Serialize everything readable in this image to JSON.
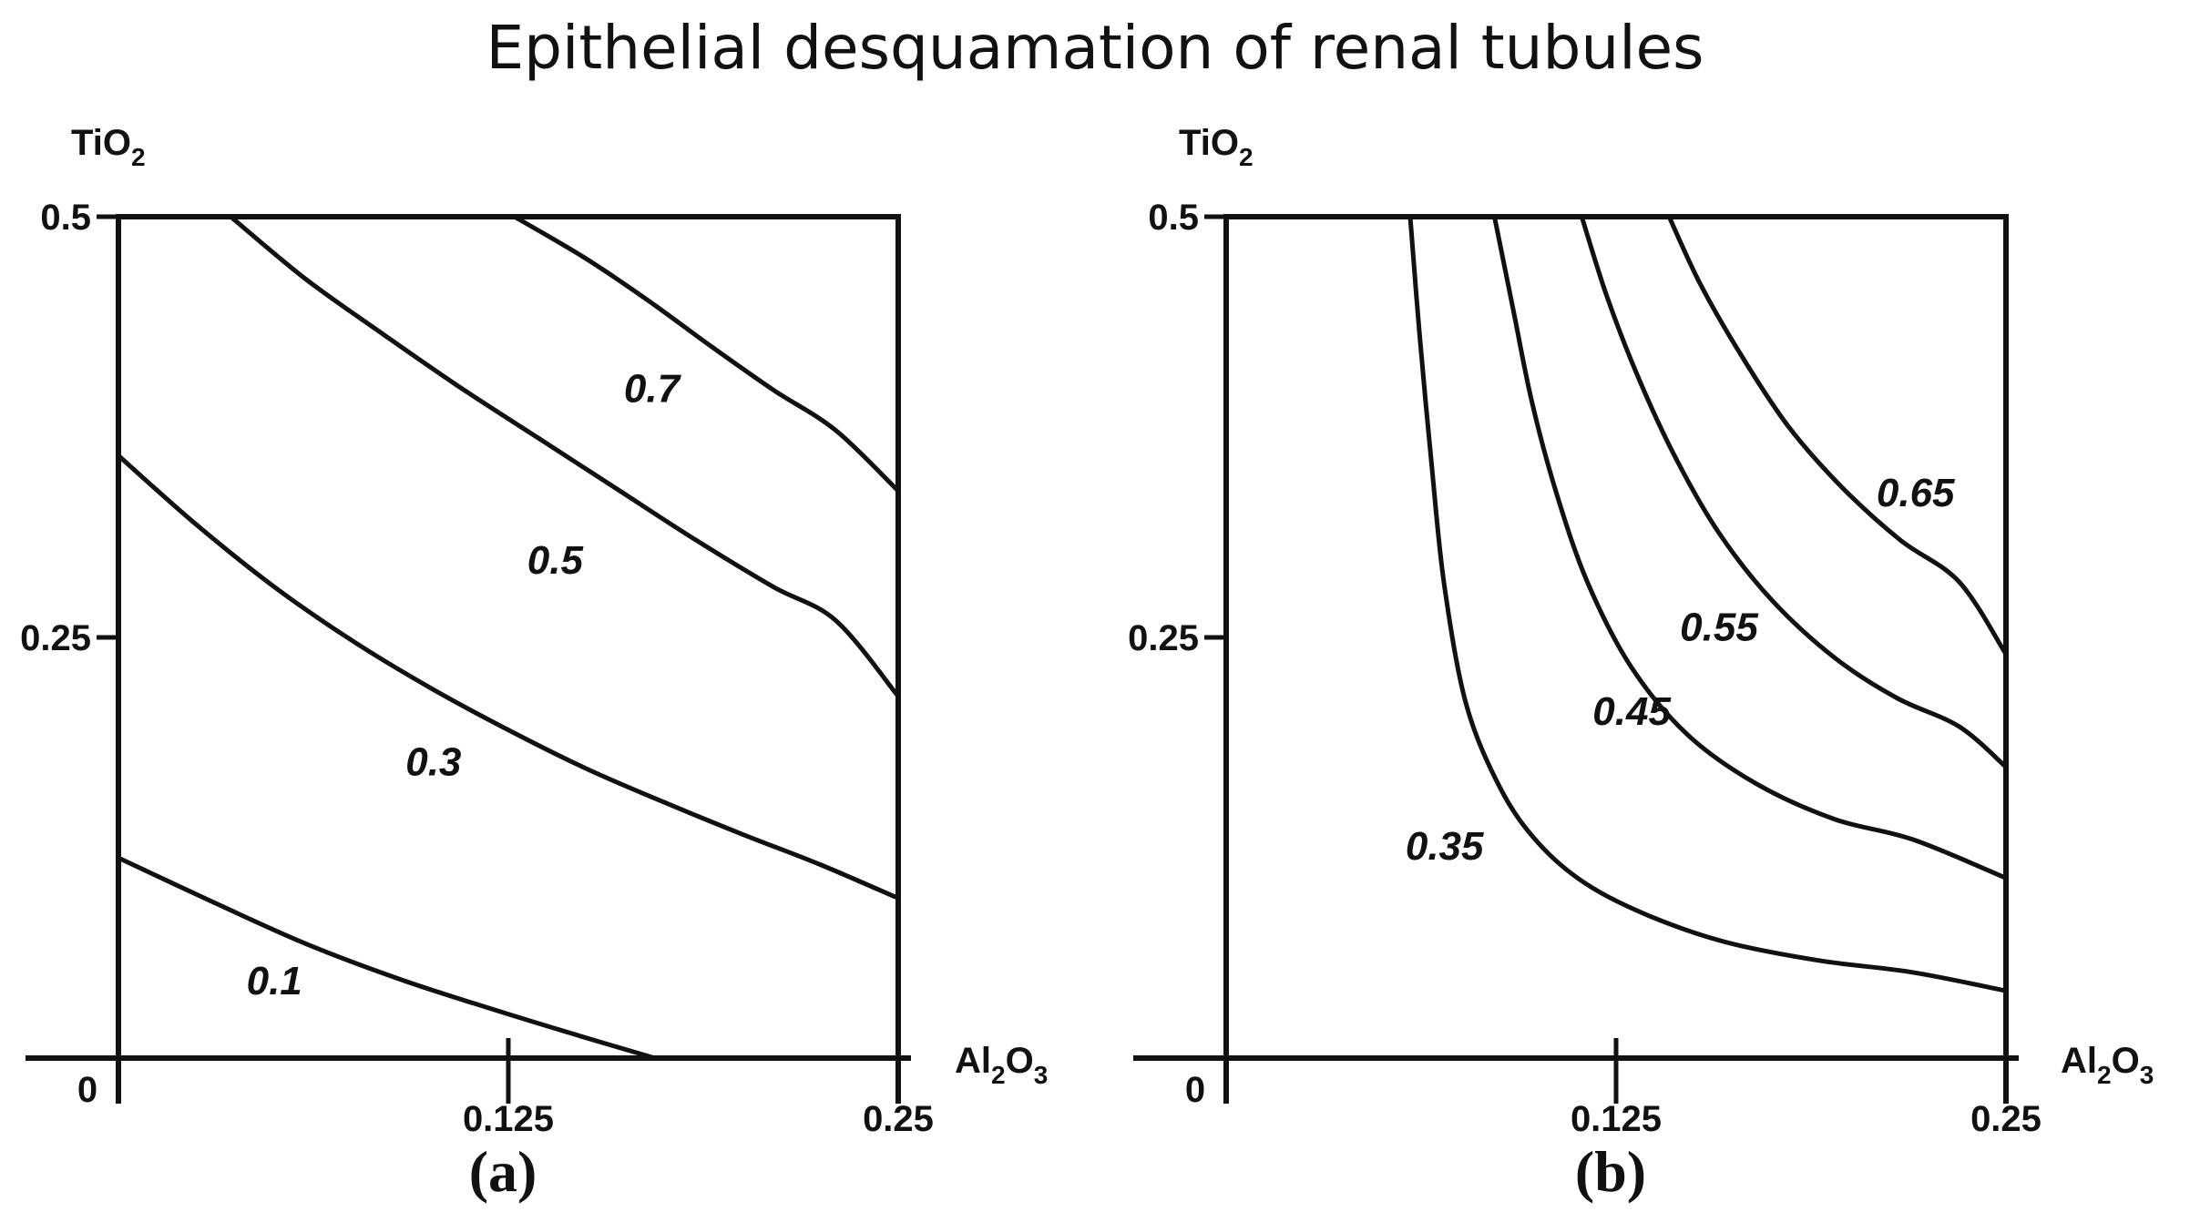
{
  "title": "Epithelial desquamation of renal tubules",
  "chart_data": [
    {
      "type": "contour",
      "panel_label": "(a)",
      "x_axis": {
        "base": "Al",
        "sub1": "2",
        "mid": "O",
        "sub2": "3",
        "ticks": [
          "0.125",
          "0.25"
        ],
        "xlim": [
          0,
          0.25
        ]
      },
      "y_axis": {
        "base": "TiO",
        "sub": "2",
        "ticks": [
          "0.25",
          "0.5"
        ],
        "ylim": [
          0,
          0.5
        ]
      },
      "origin_label": "0",
      "contours": [
        {
          "level": "0.1",
          "points": [
            [
              0,
              0.119
            ],
            [
              0.03,
              0.093
            ],
            [
              0.06,
              0.068
            ],
            [
              0.09,
              0.047
            ],
            [
              0.12,
              0.029
            ],
            [
              0.15,
              0.012
            ],
            [
              0.172,
              0
            ]
          ]
        },
        {
          "level": "0.3",
          "points": [
            [
              0,
              0.358
            ],
            [
              0.025,
              0.317
            ],
            [
              0.05,
              0.28
            ],
            [
              0.075,
              0.248
            ],
            [
              0.1,
              0.22
            ],
            [
              0.125,
              0.195
            ],
            [
              0.15,
              0.172
            ],
            [
              0.175,
              0.152
            ],
            [
              0.2,
              0.133
            ],
            [
              0.225,
              0.115
            ],
            [
              0.25,
              0.095
            ]
          ]
        },
        {
          "level": "0.5",
          "points": [
            [
              0.036,
              0.5
            ],
            [
              0.06,
              0.463
            ],
            [
              0.085,
              0.43
            ],
            [
              0.11,
              0.398
            ],
            [
              0.135,
              0.368
            ],
            [
              0.16,
              0.338
            ],
            [
              0.185,
              0.308
            ],
            [
              0.21,
              0.28
            ],
            [
              0.23,
              0.26
            ],
            [
              0.25,
              0.215
            ]
          ]
        },
        {
          "level": "0.7",
          "points": [
            [
              0.127,
              0.5
            ],
            [
              0.15,
              0.475
            ],
            [
              0.17,
              0.45
            ],
            [
              0.19,
              0.423
            ],
            [
              0.21,
              0.397
            ],
            [
              0.23,
              0.373
            ],
            [
              0.25,
              0.337
            ]
          ]
        }
      ],
      "contour_labels": [
        {
          "text": "0.1",
          "x": 0.05,
          "y": 0.038
        },
        {
          "text": "0.3",
          "x": 0.101,
          "y": 0.168
        },
        {
          "text": "0.5",
          "x": 0.14,
          "y": 0.288
        },
        {
          "text": "0.7",
          "x": 0.171,
          "y": 0.39
        }
      ]
    },
    {
      "type": "contour",
      "panel_label": "(b)",
      "x_axis": {
        "base": "Al",
        "sub1": "2",
        "mid": "O",
        "sub2": "3",
        "ticks": [
          "0.125",
          "0.25"
        ],
        "xlim": [
          0,
          0.25
        ]
      },
      "y_axis": {
        "base": "TiO",
        "sub": "2",
        "ticks": [
          "0.25",
          "0.5"
        ],
        "ylim": [
          0,
          0.5
        ]
      },
      "origin_label": "0",
      "contours": [
        {
          "level": "0.35",
          "points": [
            [
              0.059,
              0.5
            ],
            [
              0.062,
              0.43
            ],
            [
              0.066,
              0.35
            ],
            [
              0.07,
              0.28
            ],
            [
              0.077,
              0.21
            ],
            [
              0.088,
              0.16
            ],
            [
              0.1,
              0.128
            ],
            [
              0.115,
              0.104
            ],
            [
              0.135,
              0.085
            ],
            [
              0.16,
              0.069
            ],
            [
              0.19,
              0.058
            ],
            [
              0.22,
              0.051
            ],
            [
              0.25,
              0.04
            ]
          ]
        },
        {
          "level": "0.45",
          "points": [
            [
              0.086,
              0.5
            ],
            [
              0.092,
              0.445
            ],
            [
              0.098,
              0.39
            ],
            [
              0.106,
              0.335
            ],
            [
              0.116,
              0.282
            ],
            [
              0.13,
              0.232
            ],
            [
              0.148,
              0.192
            ],
            [
              0.17,
              0.163
            ],
            [
              0.195,
              0.142
            ],
            [
              0.22,
              0.13
            ],
            [
              0.25,
              0.107
            ]
          ]
        },
        {
          "level": "0.55",
          "points": [
            [
              0.114,
              0.5
            ],
            [
              0.122,
              0.453
            ],
            [
              0.132,
              0.405
            ],
            [
              0.144,
              0.357
            ],
            [
              0.158,
              0.312
            ],
            [
              0.175,
              0.272
            ],
            [
              0.195,
              0.238
            ],
            [
              0.215,
              0.214
            ],
            [
              0.235,
              0.197
            ],
            [
              0.25,
              0.173
            ]
          ]
        },
        {
          "level": "0.65",
          "points": [
            [
              0.142,
              0.5
            ],
            [
              0.152,
              0.46
            ],
            [
              0.165,
              0.418
            ],
            [
              0.18,
              0.376
            ],
            [
              0.197,
              0.34
            ],
            [
              0.216,
              0.308
            ],
            [
              0.235,
              0.283
            ],
            [
              0.25,
              0.24
            ]
          ]
        }
      ],
      "contour_labels": [
        {
          "text": "0.35",
          "x": 0.07,
          "y": 0.118
        },
        {
          "text": "0.45",
          "x": 0.13,
          "y": 0.198
        },
        {
          "text": "0.55",
          "x": 0.158,
          "y": 0.248
        },
        {
          "text": "0.65",
          "x": 0.221,
          "y": 0.328
        }
      ]
    }
  ]
}
